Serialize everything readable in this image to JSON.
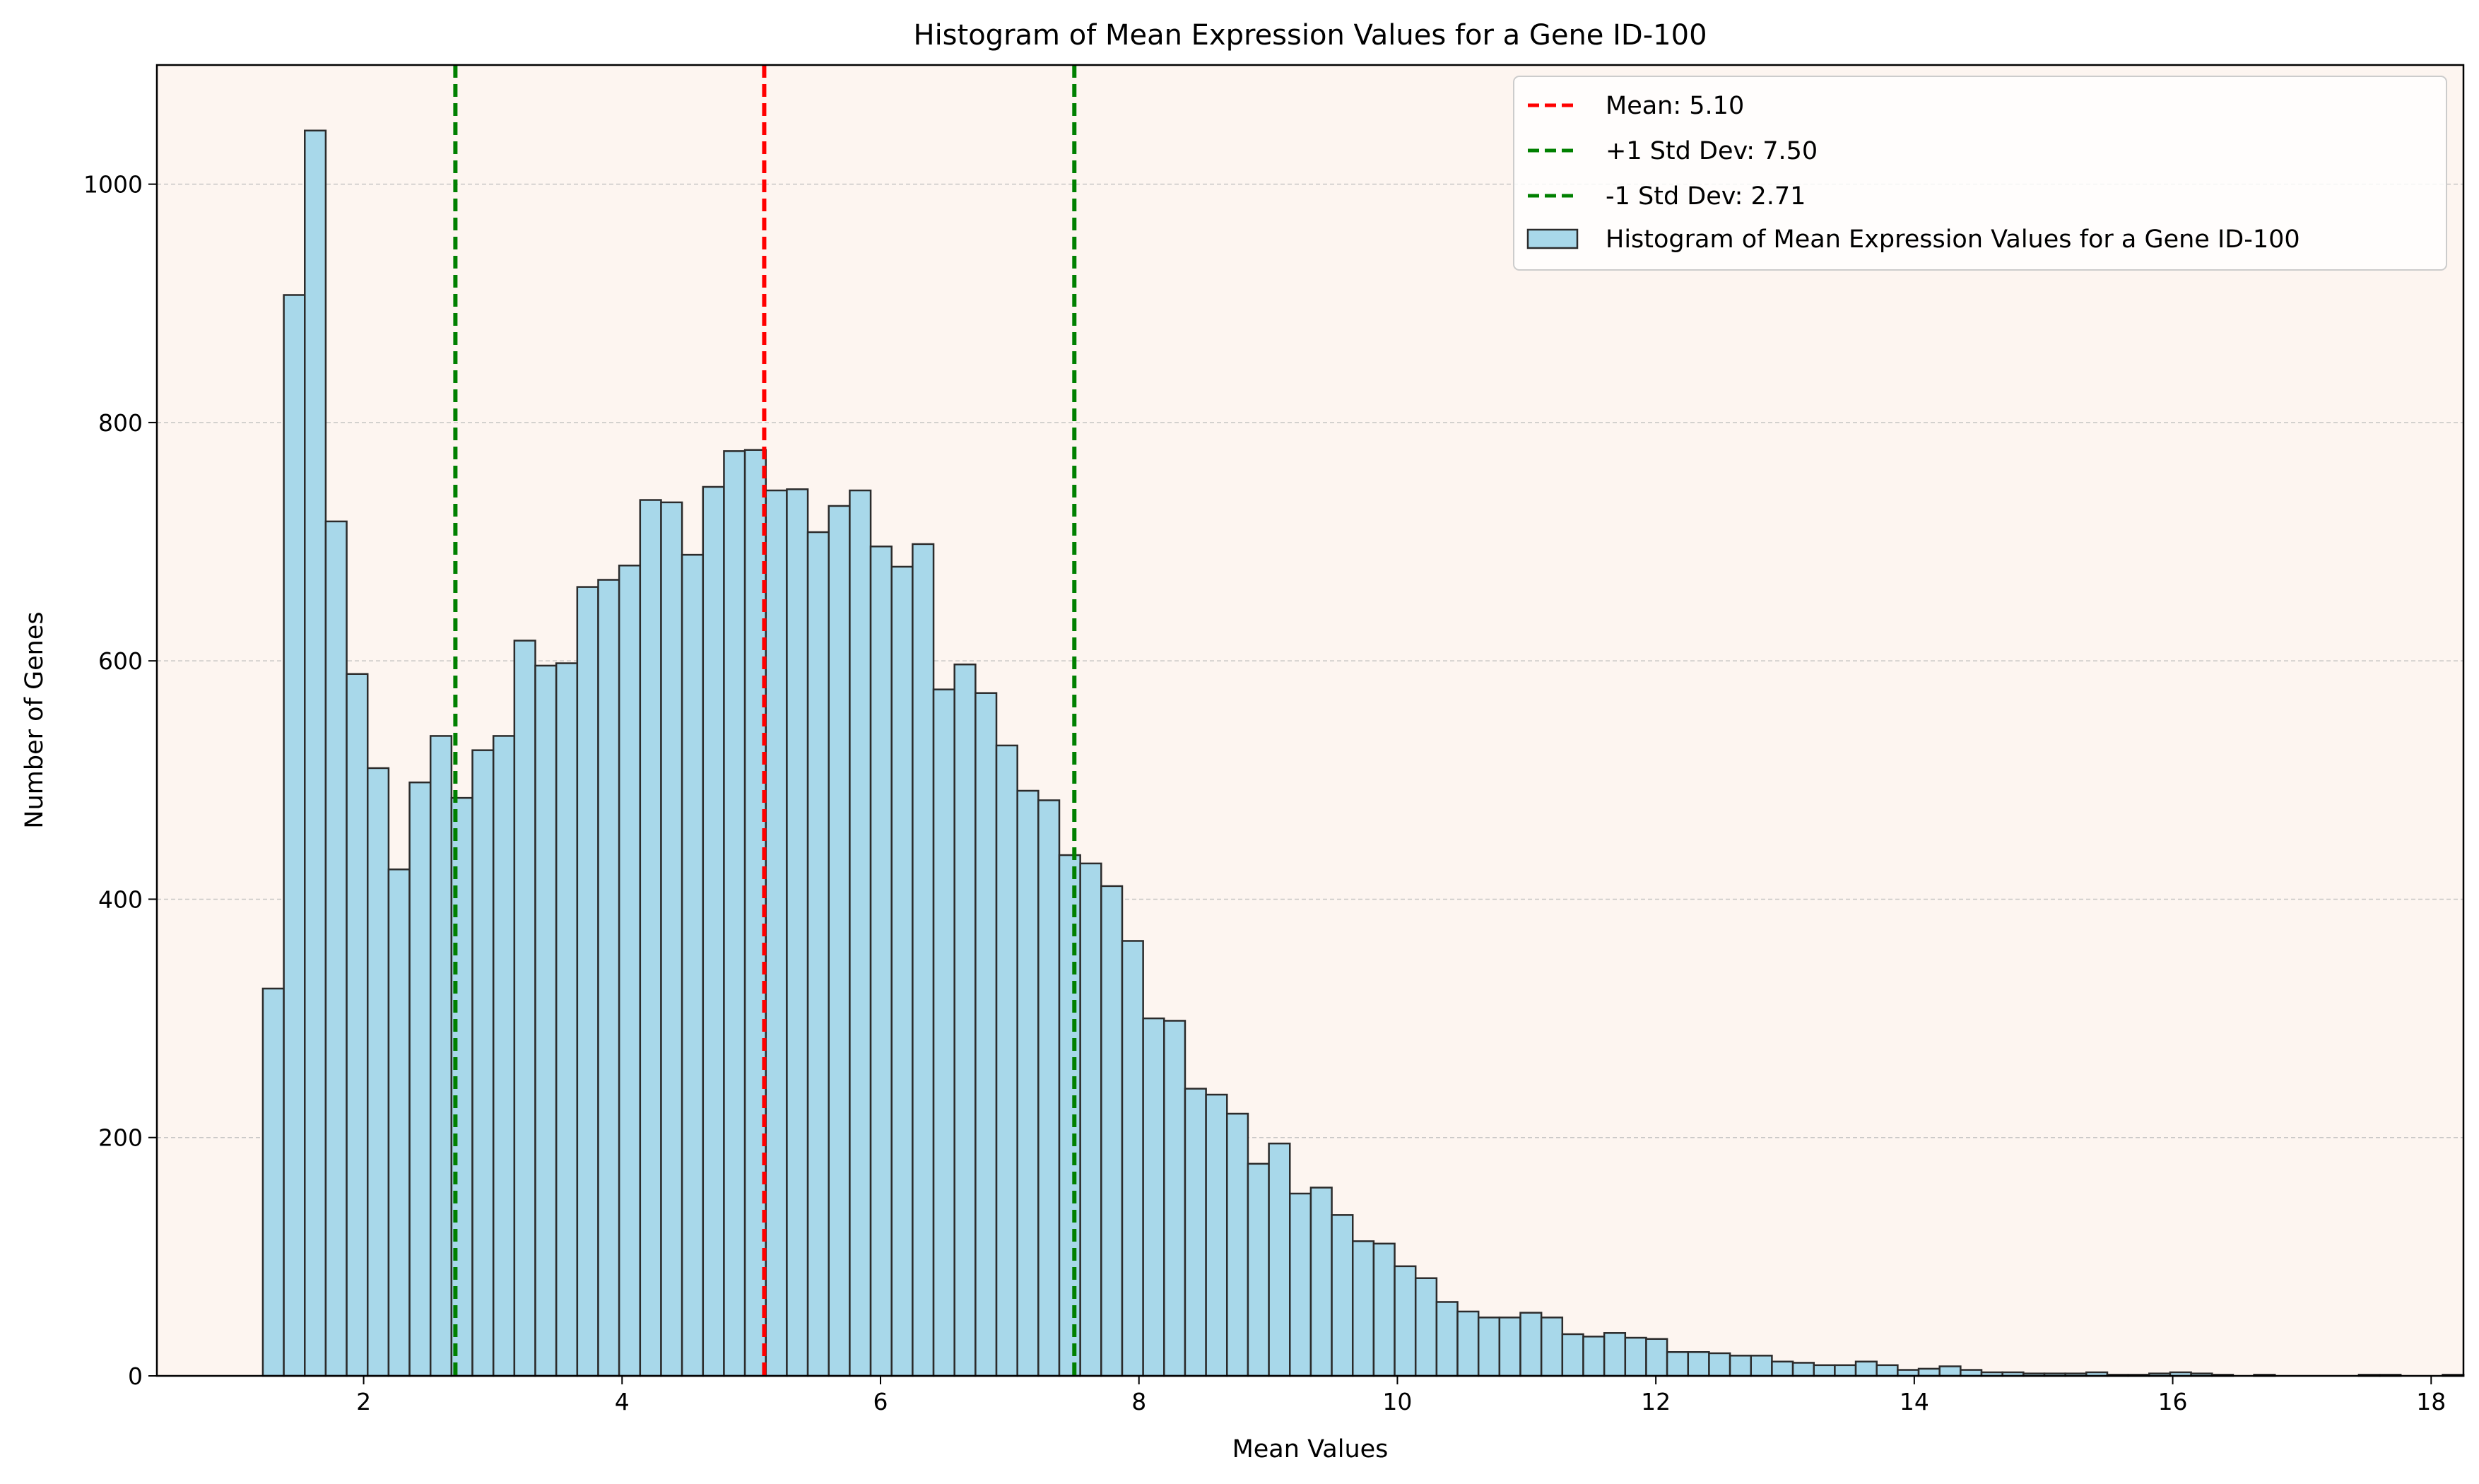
{
  "chart_data": {
    "type": "bar",
    "title": "Histogram of Mean Expression Values for a Gene ID-100",
    "xlabel": "Mean Values",
    "ylabel": "Number of Genes",
    "xlim": [
      0.4,
      18.25
    ],
    "ylim": [
      0,
      1100
    ],
    "xticks": [
      2,
      4,
      6,
      8,
      10,
      12,
      14,
      16,
      18
    ],
    "yticks": [
      0,
      200,
      400,
      600,
      800,
      1000
    ],
    "grid": "y-dashed",
    "legend_placement": "top-right",
    "colors": {
      "plot_background": "#fdf5f0",
      "bar_fill": "#a8d8ea",
      "bar_edge": "#2b2b2b",
      "mean_line": "#ff0000",
      "std_line": "#008000"
    },
    "histogram": {
      "name": "Histogram of Mean Expression Values for a Gene ID-100",
      "bin_start": 1.22,
      "bin_width": 0.1622,
      "counts": [
        325,
        907,
        1045,
        717,
        589,
        510,
        425,
        498,
        537,
        485,
        525,
        537,
        617,
        596,
        598,
        662,
        668,
        680,
        735,
        733,
        689,
        746,
        776,
        777,
        743,
        744,
        708,
        730,
        743,
        696,
        679,
        698,
        576,
        597,
        573,
        529,
        491,
        483,
        437,
        430,
        411,
        365,
        300,
        298,
        241,
        236,
        220,
        178,
        195,
        153,
        158,
        135,
        113,
        111,
        92,
        82,
        62,
        54,
        49,
        49,
        53,
        49,
        35,
        33,
        36,
        32,
        31,
        20,
        20,
        19,
        17,
        17,
        12,
        11,
        9,
        9,
        12,
        9,
        5,
        6,
        8,
        5,
        3,
        3,
        2,
        2,
        2,
        3,
        1,
        1,
        2,
        3,
        2,
        1,
        0,
        1,
        0,
        0,
        0,
        0,
        1,
        1,
        0,
        0,
        1
      ]
    },
    "reference_lines": [
      {
        "label": "Mean: 5.10",
        "x": 5.1,
        "color": "#ff0000"
      },
      {
        "label": "+1 Std Dev: 7.50",
        "x": 7.5,
        "color": "#008000"
      },
      {
        "label": "-1 Std Dev: 2.71",
        "x": 2.71,
        "color": "#008000"
      }
    ]
  }
}
